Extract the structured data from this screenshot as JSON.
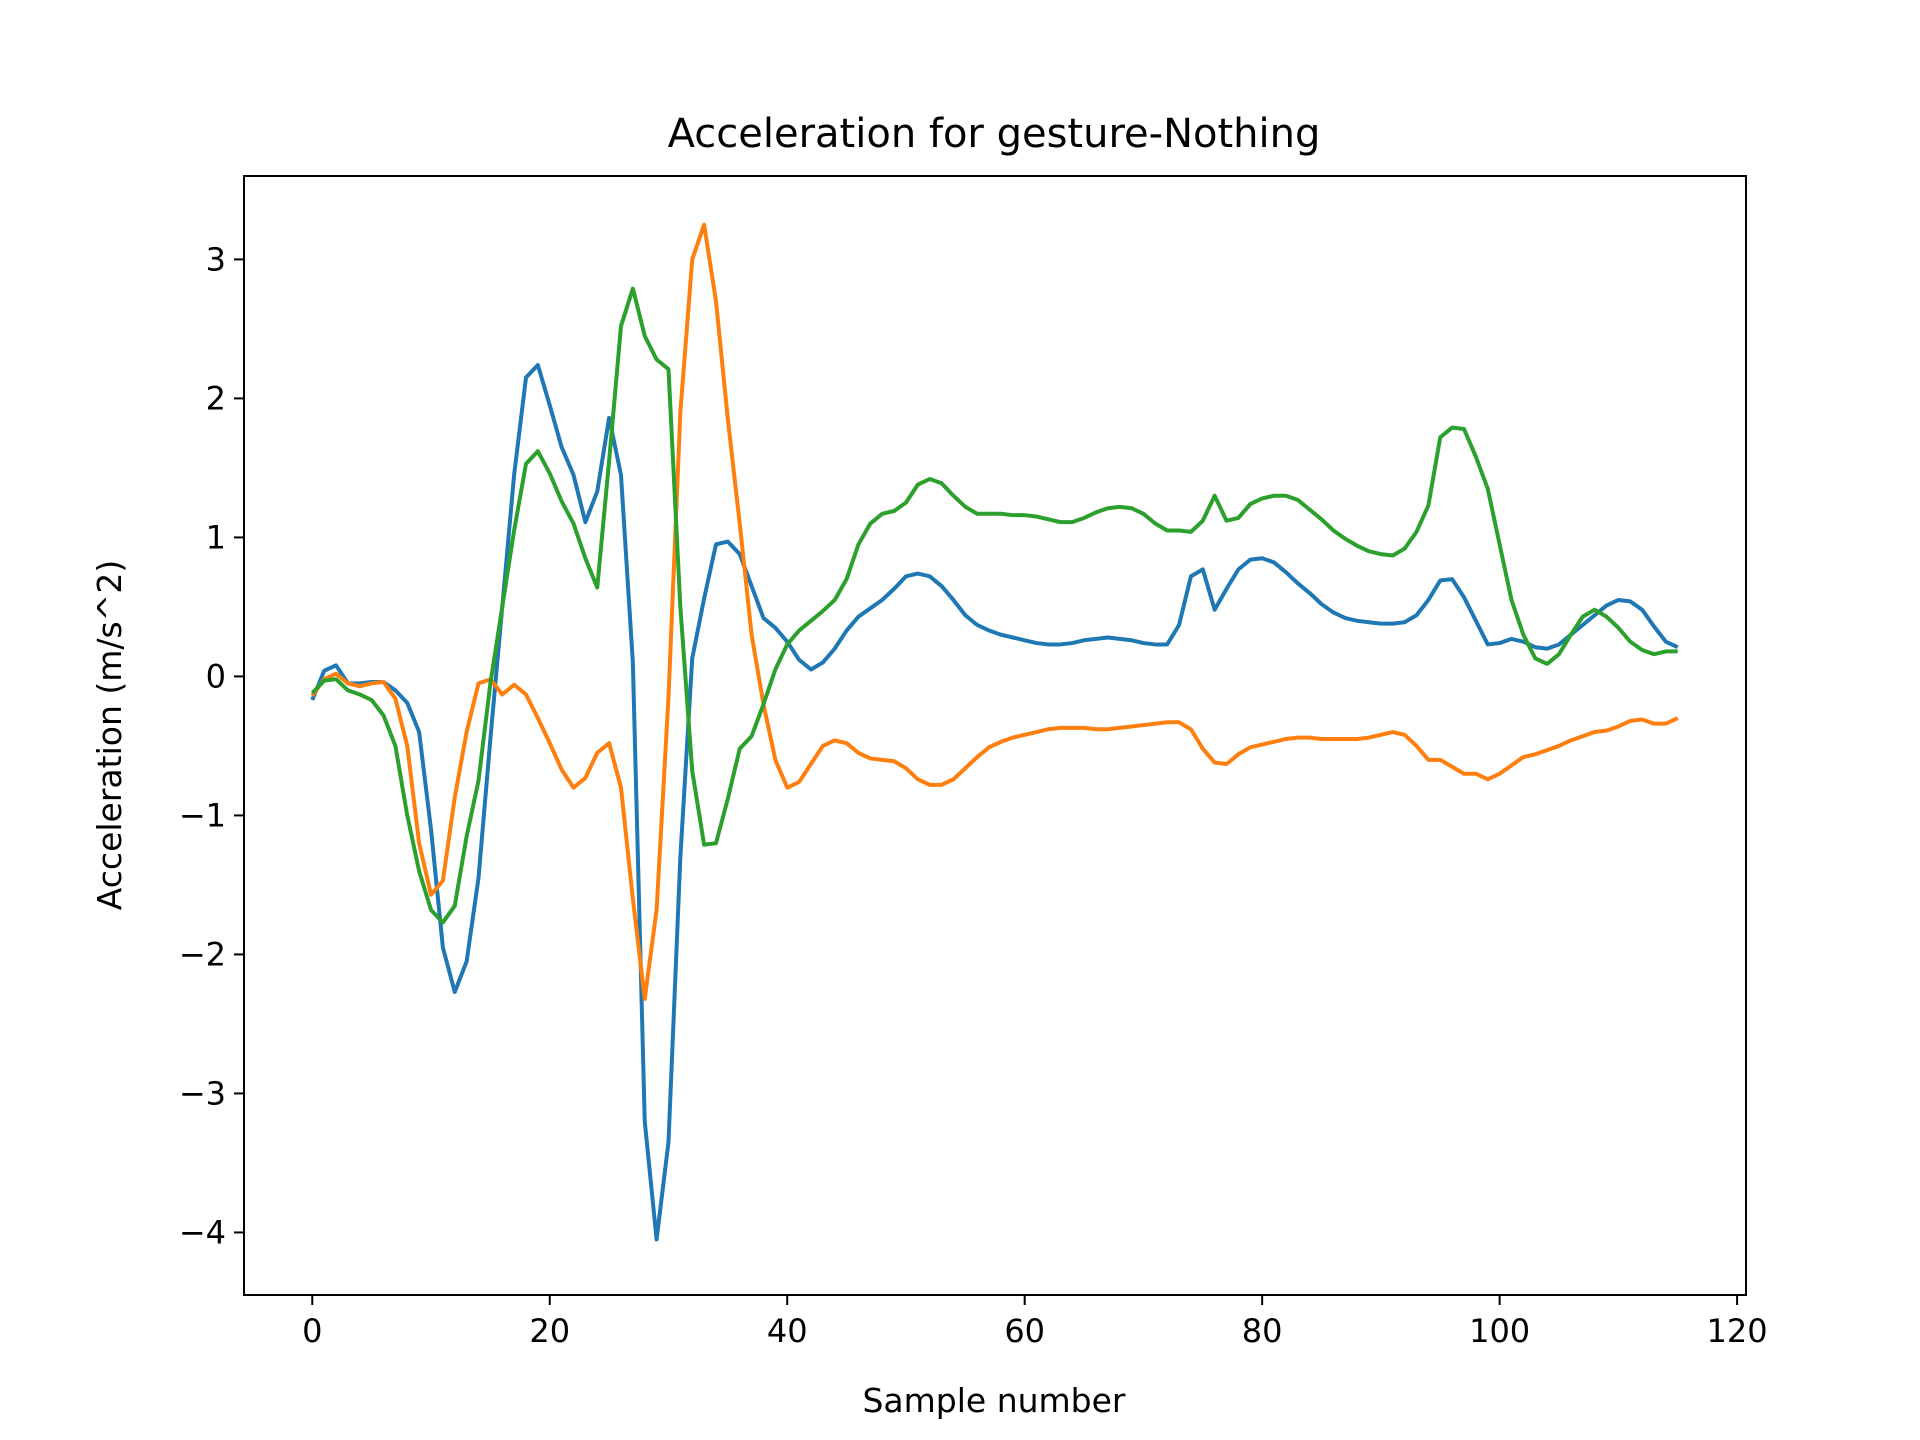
{
  "chart_data": {
    "type": "line",
    "title": "Acceleration for gesture-Nothing",
    "xlabel": "Sample number",
    "ylabel": "Acceleration (m/s^2)",
    "xlim": [
      -5.75,
      120.75
    ],
    "ylim": [
      -4.45,
      3.6
    ],
    "xticks": [
      0,
      20,
      40,
      60,
      80,
      100,
      120
    ],
    "yticks": [
      -4,
      -3,
      -2,
      -1,
      0,
      1,
      2,
      3
    ],
    "grid": false,
    "legend": "none",
    "series": [
      {
        "color": "#1f77b4",
        "values": [
          -0.17,
          0.04,
          0.08,
          -0.05,
          -0.05,
          -0.04,
          -0.04,
          -0.1,
          -0.19,
          -0.4,
          -1.1,
          -1.95,
          -2.27,
          -2.05,
          -1.45,
          -0.45,
          0.5,
          1.45,
          2.15,
          2.24,
          1.95,
          1.65,
          1.45,
          1.11,
          1.33,
          1.86,
          1.45,
          0.1,
          -3.2,
          -4.05,
          -3.35,
          -1.3,
          0.13,
          0.56,
          0.95,
          0.97,
          0.88,
          0.65,
          0.42,
          0.35,
          0.25,
          0.12,
          0.05,
          0.1,
          0.2,
          0.33,
          0.43,
          0.49,
          0.55,
          0.63,
          0.72,
          0.74,
          0.72,
          0.65,
          0.55,
          0.44,
          0.37,
          0.33,
          0.3,
          0.28,
          0.26,
          0.24,
          0.23,
          0.23,
          0.24,
          0.26,
          0.27,
          0.28,
          0.27,
          0.26,
          0.24,
          0.23,
          0.23,
          0.37,
          0.72,
          0.77,
          0.48,
          0.63,
          0.77,
          0.84,
          0.85,
          0.82,
          0.75,
          0.67,
          0.6,
          0.52,
          0.46,
          0.42,
          0.4,
          0.39,
          0.38,
          0.38,
          0.39,
          0.44,
          0.55,
          0.69,
          0.7,
          0.57,
          0.4,
          0.23,
          0.24,
          0.27,
          0.25,
          0.21,
          0.2,
          0.23,
          0.3,
          0.37,
          0.44,
          0.51,
          0.55,
          0.54,
          0.48,
          0.36,
          0.25,
          0.21
        ]
      },
      {
        "color": "#ff7f0e",
        "values": [
          -0.14,
          -0.02,
          0.02,
          -0.05,
          -0.07,
          -0.05,
          -0.04,
          -0.16,
          -0.5,
          -1.2,
          -1.57,
          -1.47,
          -0.87,
          -0.4,
          -0.05,
          -0.02,
          -0.13,
          -0.06,
          -0.13,
          -0.3,
          -0.48,
          -0.67,
          -0.8,
          -0.73,
          -0.55,
          -0.48,
          -0.8,
          -1.6,
          -2.32,
          -1.68,
          -0.15,
          1.9,
          3.0,
          3.25,
          2.7,
          1.85,
          1.1,
          0.3,
          -0.2,
          -0.6,
          -0.8,
          -0.76,
          -0.63,
          -0.5,
          -0.46,
          -0.48,
          -0.55,
          -0.59,
          -0.6,
          -0.61,
          -0.66,
          -0.74,
          -0.78,
          -0.78,
          -0.74,
          -0.66,
          -0.58,
          -0.51,
          -0.47,
          -0.44,
          -0.42,
          -0.4,
          -0.38,
          -0.37,
          -0.37,
          -0.37,
          -0.38,
          -0.38,
          -0.37,
          -0.36,
          -0.35,
          -0.34,
          -0.33,
          -0.33,
          -0.38,
          -0.52,
          -0.62,
          -0.63,
          -0.56,
          -0.51,
          -0.49,
          -0.47,
          -0.45,
          -0.44,
          -0.44,
          -0.45,
          -0.45,
          -0.45,
          -0.45,
          -0.44,
          -0.42,
          -0.4,
          -0.42,
          -0.5,
          -0.6,
          -0.6,
          -0.65,
          -0.7,
          -0.7,
          -0.74,
          -0.7,
          -0.64,
          -0.58,
          -0.56,
          -0.53,
          -0.5,
          -0.46,
          -0.43,
          -0.4,
          -0.39,
          -0.36,
          -0.32,
          -0.31,
          -0.34,
          -0.34,
          -0.3
        ]
      },
      {
        "color": "#2ca02c",
        "values": [
          -0.12,
          -0.03,
          -0.02,
          -0.1,
          -0.13,
          -0.17,
          -0.28,
          -0.5,
          -1.0,
          -1.4,
          -1.68,
          -1.77,
          -1.65,
          -1.15,
          -0.75,
          -0.05,
          0.5,
          1.05,
          1.53,
          1.62,
          1.46,
          1.26,
          1.1,
          0.85,
          0.64,
          1.55,
          2.52,
          2.79,
          2.45,
          2.28,
          2.21,
          0.5,
          -0.68,
          -1.21,
          -1.2,
          -0.88,
          -0.52,
          -0.43,
          -0.2,
          0.05,
          0.23,
          0.33,
          0.4,
          0.47,
          0.55,
          0.7,
          0.95,
          1.1,
          1.17,
          1.19,
          1.25,
          1.38,
          1.42,
          1.39,
          1.3,
          1.22,
          1.17,
          1.17,
          1.17,
          1.16,
          1.16,
          1.15,
          1.13,
          1.11,
          1.11,
          1.14,
          1.18,
          1.21,
          1.22,
          1.21,
          1.17,
          1.1,
          1.05,
          1.05,
          1.04,
          1.12,
          1.3,
          1.12,
          1.14,
          1.24,
          1.28,
          1.3,
          1.3,
          1.27,
          1.2,
          1.13,
          1.05,
          0.99,
          0.94,
          0.9,
          0.88,
          0.87,
          0.92,
          1.04,
          1.23,
          1.72,
          1.79,
          1.78,
          1.58,
          1.35,
          0.95,
          0.55,
          0.3,
          0.13,
          0.09,
          0.16,
          0.3,
          0.43,
          0.48,
          0.43,
          0.35,
          0.25,
          0.19,
          0.16,
          0.18,
          0.18
        ]
      }
    ]
  }
}
